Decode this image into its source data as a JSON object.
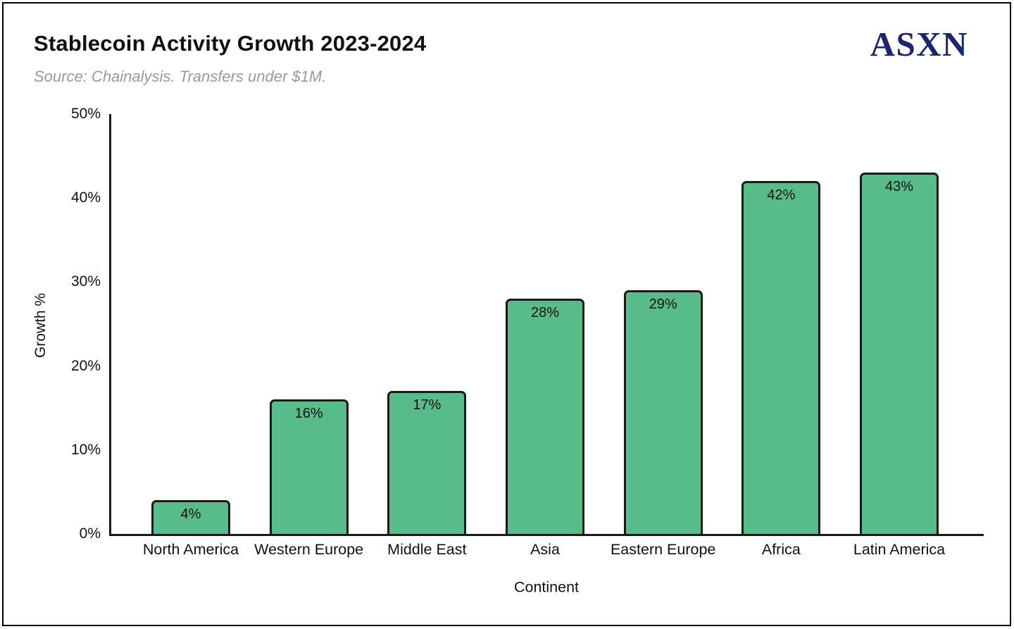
{
  "header": {
    "title": "Stablecoin Activity Growth 2023-2024",
    "subtitle": "Source: Chainalysis. Transfers under $1M.",
    "logo_text": "ASXN"
  },
  "colors": {
    "bar_fill": "#57bb8a",
    "bar_border": "#1a1a1a",
    "axis": "#1a1a1a",
    "title_text": "#111111",
    "subtitle_text": "#9a9a9a",
    "logo_navy": "#1a2673",
    "background": "#ffffff"
  },
  "chart_data": {
    "type": "bar",
    "title": "Stablecoin Activity Growth 2023-2024",
    "subtitle": "Source: Chainalysis. Transfers under $1M.",
    "categories": [
      "North America",
      "Western Europe",
      "Middle East",
      "Asia",
      "Eastern Europe",
      "Africa",
      "Latin America"
    ],
    "values": [
      4,
      16,
      17,
      28,
      29,
      42,
      43
    ],
    "value_labels": [
      "4%",
      "16%",
      "17%",
      "28%",
      "29%",
      "42%",
      "43%"
    ],
    "xlabel": "Continent",
    "ylabel": "Growth %",
    "ylim": [
      0,
      50
    ],
    "ytick_values": [
      0,
      10,
      20,
      30,
      40,
      50
    ],
    "ytick_labels": [
      "0%",
      "10%",
      "20%",
      "30%",
      "40%",
      "50%"
    ],
    "grid": false,
    "legend": "none",
    "bar_color": "#57bb8a"
  }
}
